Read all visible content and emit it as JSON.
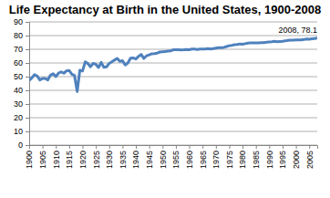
{
  "chart_data": {
    "type": "line",
    "title": "Life Expectancy at Birth in the United States, 1900-2008",
    "x": [
      1900,
      1901,
      1902,
      1903,
      1904,
      1905,
      1906,
      1907,
      1908,
      1909,
      1910,
      1911,
      1912,
      1913,
      1914,
      1915,
      1916,
      1917,
      1918,
      1919,
      1920,
      1921,
      1922,
      1923,
      1924,
      1925,
      1926,
      1927,
      1928,
      1929,
      1930,
      1931,
      1932,
      1933,
      1934,
      1935,
      1936,
      1937,
      1938,
      1939,
      1940,
      1941,
      1942,
      1943,
      1944,
      1945,
      1946,
      1947,
      1948,
      1949,
      1950,
      1951,
      1952,
      1953,
      1954,
      1955,
      1956,
      1957,
      1958,
      1959,
      1960,
      1961,
      1962,
      1963,
      1964,
      1965,
      1966,
      1967,
      1968,
      1969,
      1970,
      1971,
      1972,
      1973,
      1974,
      1975,
      1976,
      1977,
      1978,
      1979,
      1980,
      1981,
      1982,
      1983,
      1984,
      1985,
      1986,
      1987,
      1988,
      1989,
      1990,
      1991,
      1992,
      1993,
      1994,
      1995,
      1996,
      1997,
      1998,
      1999,
      2000,
      2001,
      2002,
      2003,
      2004,
      2005,
      2006,
      2007,
      2008
    ],
    "values": [
      47.3,
      49.1,
      51.5,
      50.5,
      47.6,
      48.7,
      48.7,
      47.6,
      51.1,
      52.1,
      50.0,
      52.6,
      53.5,
      52.5,
      54.2,
      54.5,
      51.7,
      50.9,
      39.1,
      54.7,
      54.1,
      60.8,
      59.6,
      57.2,
      59.7,
      59.0,
      56.7,
      60.4,
      56.8,
      57.1,
      59.7,
      60.8,
      62.1,
      63.3,
      61.1,
      61.7,
      58.5,
      60.0,
      63.5,
      63.7,
      62.9,
      64.8,
      66.2,
      63.3,
      65.2,
      65.9,
      66.7,
      66.8,
      67.2,
      68.0,
      68.2,
      68.4,
      68.6,
      68.8,
      69.6,
      69.6,
      69.7,
      69.5,
      69.6,
      69.9,
      69.7,
      70.2,
      70.1,
      69.9,
      70.2,
      70.2,
      70.2,
      70.5,
      70.2,
      70.5,
      70.8,
      71.1,
      71.2,
      71.4,
      72.0,
      72.6,
      72.9,
      73.3,
      73.5,
      73.9,
      73.7,
      74.1,
      74.5,
      74.6,
      74.7,
      74.7,
      74.7,
      74.9,
      74.9,
      75.1,
      75.4,
      75.5,
      75.8,
      75.5,
      75.7,
      75.8,
      76.1,
      76.5,
      76.7,
      76.7,
      76.8,
      76.9,
      76.9,
      77.1,
      77.5,
      77.4,
      77.7,
      77.9,
      78.1
    ],
    "color": "#4f81bd",
    "xlim": [
      1900,
      2008
    ],
    "xticks": [
      1900,
      1905,
      1910,
      1915,
      1920,
      1925,
      1930,
      1935,
      1940,
      1945,
      1950,
      1955,
      1960,
      1965,
      1970,
      1975,
      1980,
      1985,
      1990,
      1995,
      2000,
      2005
    ],
    "ylim": [
      0,
      90
    ],
    "yticks": [
      0,
      10,
      20,
      30,
      40,
      50,
      60,
      70,
      80,
      90
    ],
    "grid": true,
    "annotations": [
      {
        "x": 2008,
        "y": 78.1,
        "text": "2008, 78.1"
      }
    ]
  }
}
